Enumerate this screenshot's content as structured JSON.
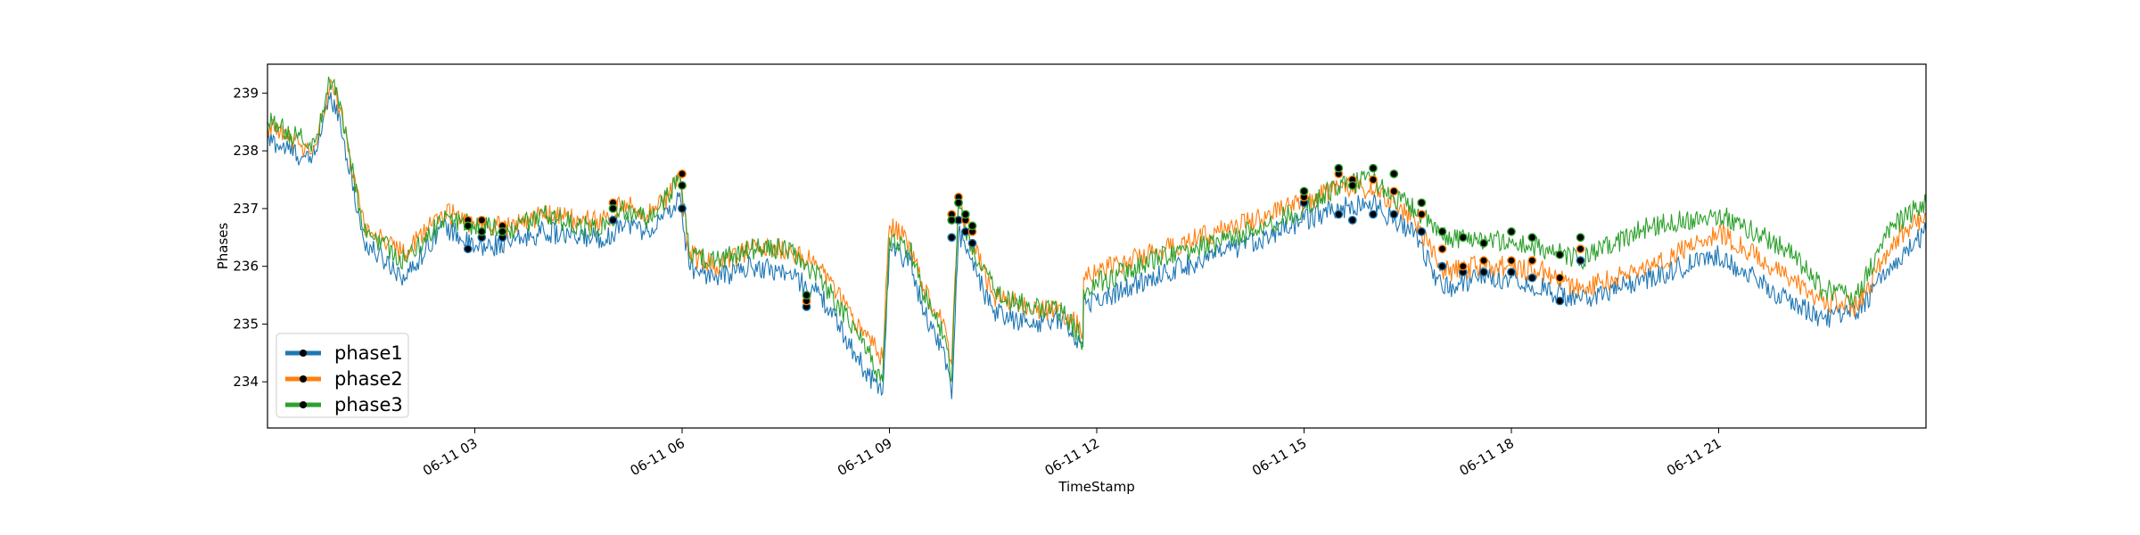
{
  "chart_data": {
    "type": "line",
    "title": "",
    "xlabel": "TimeStamp",
    "ylabel": "Phases",
    "x_tick_labels": [
      "06-11 03",
      "06-11 06",
      "06-11 09",
      "06-11 12",
      "06-11 15",
      "06-11 18",
      "06-11 21"
    ],
    "x_tick_hours": [
      3,
      6,
      9,
      12,
      15,
      18,
      21
    ],
    "xlim_hours": [
      0,
      24
    ],
    "y_ticks": [
      234,
      235,
      236,
      237,
      238,
      239
    ],
    "ylim": [
      233.2,
      239.5
    ],
    "grid": false,
    "legend_position": "lower-left",
    "legend_marker": "black dot on line",
    "colors": {
      "phase1": "#1f77b4",
      "phase2": "#ff7f0e",
      "phase3": "#2ca02c",
      "marker": "#000000"
    },
    "x_hours": [
      0,
      0.5,
      0.6,
      0.7,
      0.8,
      0.9,
      1.0,
      1.4,
      2.0,
      2.4,
      2.5,
      2.7,
      3.0,
      3.5,
      4.0,
      4.5,
      5.0,
      5.1,
      5.5,
      5.8,
      5.95,
      6.0,
      6.1,
      6.5,
      7.0,
      7.5,
      8.0,
      8.5,
      8.7,
      8.8,
      8.9,
      9.0,
      9.3,
      9.5,
      9.8,
      9.9,
      10.0,
      10.1,
      10.5,
      11.0,
      11.5,
      11.8,
      11.81,
      12.0,
      13.0,
      14.0,
      15.0,
      15.5,
      16.0,
      16.3,
      16.6,
      17.0,
      17.5,
      18.0,
      18.5,
      19.0,
      20.0,
      21.0,
      22.0,
      22.5,
      23.0,
      23.5,
      24.0
    ],
    "series": [
      {
        "name": "phase1",
        "values": [
          238.2,
          237.9,
          237.8,
          238.0,
          238.5,
          238.9,
          238.8,
          236.4,
          235.8,
          236.5,
          236.7,
          236.6,
          236.3,
          236.4,
          236.6,
          236.5,
          236.5,
          236.8,
          236.6,
          236.9,
          237.2,
          236.9,
          236.0,
          235.8,
          236.0,
          235.9,
          235.5,
          234.5,
          234.1,
          234.0,
          233.8,
          236.3,
          236.1,
          235.2,
          234.5,
          233.7,
          236.6,
          236.3,
          235.2,
          235.0,
          235.1,
          234.6,
          235.4,
          235.4,
          235.9,
          236.3,
          236.8,
          237.0,
          237.1,
          236.8,
          236.6,
          235.6,
          235.8,
          235.8,
          235.6,
          235.4,
          235.8,
          236.2,
          235.4,
          235.1,
          235.2,
          236.0,
          236.6
        ]
      },
      {
        "name": "phase2",
        "values": [
          238.4,
          238.1,
          238.0,
          238.1,
          238.6,
          239.1,
          239.0,
          236.7,
          236.2,
          236.8,
          236.9,
          236.9,
          236.7,
          236.7,
          236.9,
          236.8,
          236.8,
          237.1,
          236.9,
          237.2,
          237.6,
          237.2,
          236.2,
          236.0,
          236.3,
          236.3,
          236.0,
          235.0,
          234.8,
          234.6,
          234.4,
          236.7,
          236.4,
          235.6,
          235.0,
          234.3,
          237.2,
          236.7,
          235.5,
          235.3,
          235.2,
          234.9,
          235.8,
          235.9,
          236.3,
          236.7,
          237.1,
          237.4,
          237.3,
          237.1,
          236.8,
          235.9,
          236.0,
          236.0,
          235.9,
          235.6,
          236.0,
          236.6,
          235.8,
          235.4,
          235.3,
          236.4,
          236.9
        ]
      },
      {
        "name": "phase3",
        "values": [
          238.5,
          238.2,
          238.1,
          238.2,
          238.7,
          239.2,
          239.1,
          236.6,
          236.1,
          236.6,
          236.8,
          236.8,
          236.7,
          236.6,
          236.9,
          236.7,
          236.7,
          237.0,
          236.8,
          237.2,
          237.6,
          237.3,
          236.2,
          236.1,
          236.3,
          236.3,
          235.8,
          234.9,
          234.5,
          234.2,
          234.0,
          236.5,
          236.3,
          235.5,
          234.8,
          234.0,
          237.1,
          236.6,
          235.6,
          235.3,
          235.2,
          234.7,
          235.6,
          235.7,
          236.2,
          236.5,
          237.0,
          237.4,
          237.5,
          237.2,
          237.0,
          236.5,
          236.5,
          236.4,
          236.3,
          236.1,
          236.7,
          236.9,
          236.3,
          235.6,
          235.5,
          236.7,
          237.1
        ]
      }
    ],
    "anomaly_markers": [
      {
        "series": "phase1",
        "x": [
          2.9,
          3.1,
          3.4,
          5.0,
          6.0,
          7.8,
          9.9,
          10.0,
          10.1,
          10.2,
          15.0,
          15.5,
          15.7,
          16.0,
          16.3,
          16.7,
          17.0,
          17.3,
          17.6,
          18.0,
          18.3,
          18.7,
          19.0
        ],
        "y": [
          236.3,
          236.5,
          236.5,
          236.8,
          237.0,
          235.3,
          236.5,
          236.8,
          236.6,
          236.4,
          237.1,
          236.9,
          236.8,
          236.9,
          236.9,
          236.6,
          236.0,
          235.9,
          235.9,
          235.9,
          235.8,
          235.4,
          236.1
        ]
      },
      {
        "series": "phase2",
        "x": [
          2.9,
          3.1,
          3.4,
          5.0,
          6.0,
          7.8,
          9.9,
          10.0,
          10.1,
          10.2,
          15.0,
          15.5,
          15.7,
          16.0,
          16.3,
          16.7,
          17.0,
          17.3,
          17.6,
          18.0,
          18.3,
          18.7,
          19.0
        ],
        "y": [
          236.8,
          236.8,
          236.7,
          237.1,
          237.6,
          235.4,
          236.9,
          237.2,
          236.8,
          236.6,
          237.2,
          237.6,
          237.5,
          237.5,
          237.3,
          236.9,
          236.3,
          236.0,
          236.1,
          236.1,
          236.1,
          235.8,
          236.3
        ]
      },
      {
        "series": "phase3",
        "x": [
          2.9,
          3.1,
          3.4,
          5.0,
          6.0,
          7.8,
          9.9,
          10.0,
          10.1,
          10.2,
          15.0,
          15.5,
          15.7,
          16.0,
          16.3,
          16.7,
          17.0,
          17.3,
          17.6,
          18.0,
          18.3,
          18.7,
          19.0
        ],
        "y": [
          236.7,
          236.6,
          236.6,
          237.0,
          237.4,
          235.5,
          236.8,
          237.1,
          236.9,
          236.7,
          237.3,
          237.7,
          237.4,
          237.7,
          237.6,
          237.1,
          236.6,
          236.5,
          236.4,
          236.6,
          236.5,
          236.2,
          236.5
        ]
      }
    ],
    "legend": [
      {
        "label": "phase1",
        "color": "#1f77b4"
      },
      {
        "label": "phase2",
        "color": "#ff7f0e"
      },
      {
        "label": "phase3",
        "color": "#2ca02c"
      }
    ]
  }
}
